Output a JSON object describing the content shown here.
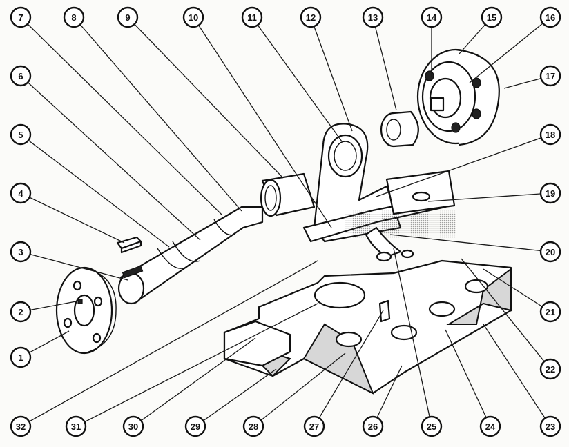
{
  "callouts": [
    {
      "id": "1",
      "label": "1"
    },
    {
      "id": "2",
      "label": "2"
    },
    {
      "id": "3",
      "label": "3"
    },
    {
      "id": "4",
      "label": "4"
    },
    {
      "id": "5",
      "label": "5"
    },
    {
      "id": "6",
      "label": "6"
    },
    {
      "id": "7",
      "label": "7"
    },
    {
      "id": "8",
      "label": "8"
    },
    {
      "id": "9",
      "label": "9"
    },
    {
      "id": "10",
      "label": "10"
    },
    {
      "id": "11",
      "label": "11"
    },
    {
      "id": "12",
      "label": "12"
    },
    {
      "id": "13",
      "label": "13"
    },
    {
      "id": "14",
      "label": "14"
    },
    {
      "id": "15",
      "label": "15"
    },
    {
      "id": "16",
      "label": "16"
    },
    {
      "id": "17",
      "label": "17"
    },
    {
      "id": "18",
      "label": "18"
    },
    {
      "id": "19",
      "label": "19"
    },
    {
      "id": "20",
      "label": "20"
    },
    {
      "id": "21",
      "label": "21"
    },
    {
      "id": "22",
      "label": "22"
    },
    {
      "id": "23",
      "label": "23"
    },
    {
      "id": "24",
      "label": "24"
    },
    {
      "id": "25",
      "label": "25"
    },
    {
      "id": "26",
      "label": "26"
    },
    {
      "id": "27",
      "label": "27"
    },
    {
      "id": "28",
      "label": "28"
    },
    {
      "id": "29",
      "label": "29"
    },
    {
      "id": "30",
      "label": "30"
    },
    {
      "id": "31",
      "label": "31"
    },
    {
      "id": "32",
      "label": "32"
    }
  ],
  "colors": {
    "ink": "#111111",
    "paper": "#fbfbf9",
    "hatch": "#555555"
  }
}
